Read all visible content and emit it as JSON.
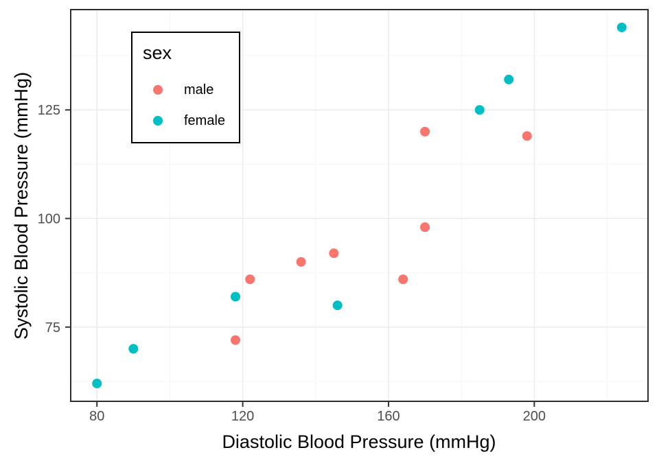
{
  "chart_data": {
    "type": "scatter",
    "title": "",
    "xlabel": "Diastolic Blood Pressure (mmHg)",
    "ylabel": "Systolic Blood Pressure (mmHg)",
    "xlim": [
      72.8,
      231.2
    ],
    "ylim": [
      57.9,
      148.1
    ],
    "x_ticks": [
      80,
      120,
      160,
      200
    ],
    "y_ticks": [
      75,
      100,
      125
    ],
    "x_minor": [
      100,
      140,
      180,
      220
    ],
    "y_minor": [
      62.5,
      87.5,
      112.5,
      137.5
    ],
    "grid": true,
    "legend": {
      "title": "sex",
      "position": "inside-top-left"
    },
    "series": [
      {
        "name": "male",
        "color": "#F8766D",
        "points": [
          [
            118,
            72
          ],
          [
            122,
            86
          ],
          [
            136,
            90
          ],
          [
            145,
            92
          ],
          [
            164,
            86
          ],
          [
            170,
            98
          ],
          [
            170,
            120
          ],
          [
            198,
            119
          ]
        ]
      },
      {
        "name": "female",
        "color": "#00BFC4",
        "points": [
          [
            80,
            62
          ],
          [
            90,
            70
          ],
          [
            118,
            82
          ],
          [
            146,
            80
          ],
          [
            185,
            125
          ],
          [
            193,
            132
          ],
          [
            224,
            144
          ]
        ]
      }
    ]
  },
  "colors": {
    "grid_major": "#EBEBEB",
    "grid_minor": "#F5F5F5",
    "panel_border": "#2E2E2E",
    "tick_mark": "#333333",
    "tick_label": "#4D4D4D",
    "axis_title": "#000000",
    "background": "#FFFFFF"
  }
}
